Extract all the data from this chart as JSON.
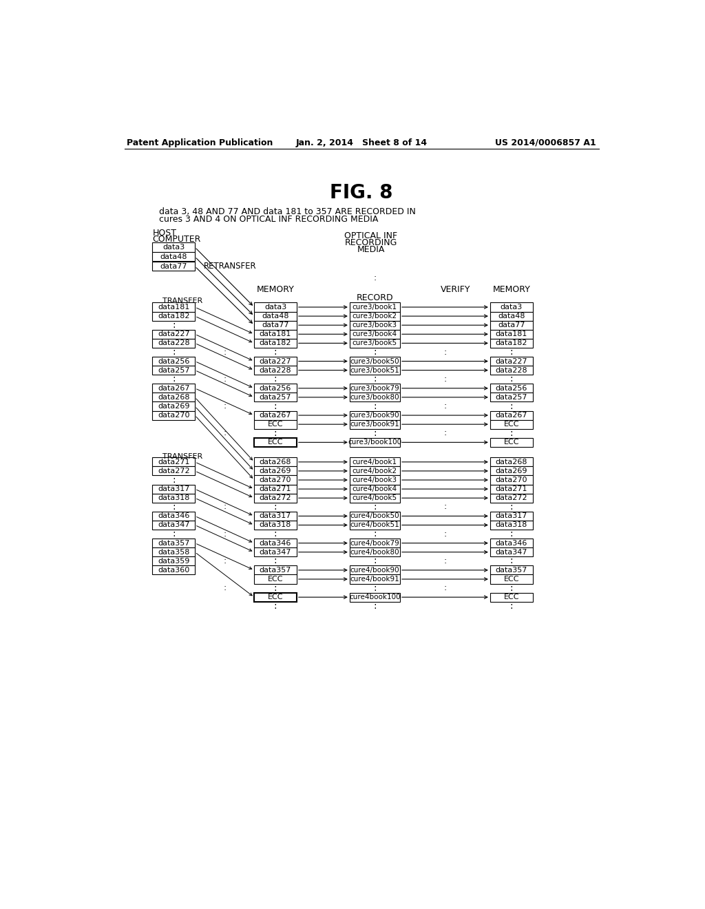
{
  "header_left": "Patent Application Publication",
  "header_center": "Jan. 2, 2014   Sheet 8 of 14",
  "header_right": "US 2014/0006857 A1",
  "title": "FIG. 8",
  "subtitle_line1": "data 3, 48 AND 77 AND data 181 to 357 ARE RECORDED IN",
  "subtitle_line2": "cures 3 AND 4 ON OPTICAL INF RECORDING MEDIA",
  "bg_color": "#ffffff"
}
